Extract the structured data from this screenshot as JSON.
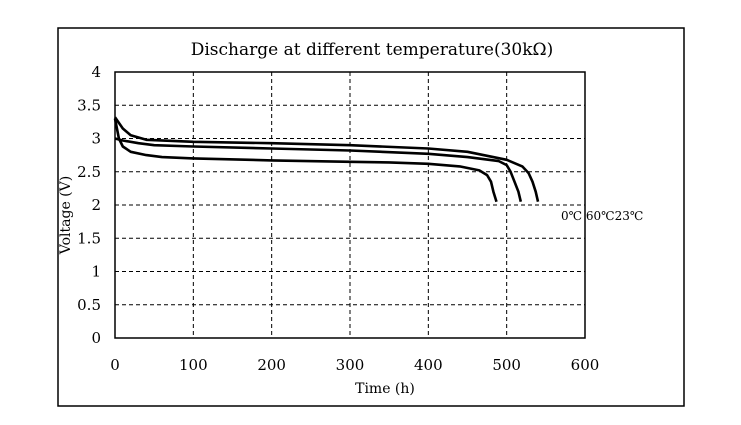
{
  "chart_data": {
    "type": "line",
    "title": "Discharge at different temperature(30kΩ)",
    "xlabel": "Time (h)",
    "ylabel": "Voltage (V)",
    "xlim": [
      0,
      600
    ],
    "ylim": [
      0,
      4
    ],
    "xticks": [
      "0",
      "100",
      "200",
      "300",
      "400",
      "500",
      "600"
    ],
    "yticks": [
      "0",
      "0.5",
      "1",
      "1.5",
      "2",
      "2.5",
      "3",
      "3.5",
      "4"
    ],
    "grid": true,
    "series_labels_text": "0℃ 60℃23℃",
    "series": [
      {
        "name": "0℃",
        "x": [
          0,
          5,
          10,
          20,
          40,
          60,
          100,
          200,
          300,
          350,
          400,
          440,
          465,
          475,
          480,
          483,
          487
        ],
        "y": [
          3.3,
          3.0,
          2.88,
          2.8,
          2.75,
          2.72,
          2.7,
          2.67,
          2.65,
          2.64,
          2.62,
          2.58,
          2.52,
          2.45,
          2.35,
          2.2,
          2.05
        ]
      },
      {
        "name": "60℃",
        "x": [
          0,
          10,
          30,
          50,
          100,
          200,
          300,
          400,
          450,
          490,
          500,
          505,
          510,
          515,
          518
        ],
        "y": [
          3.0,
          2.97,
          2.93,
          2.9,
          2.88,
          2.85,
          2.82,
          2.77,
          2.72,
          2.66,
          2.6,
          2.5,
          2.35,
          2.2,
          2.05
        ]
      },
      {
        "name": "23℃",
        "x": [
          0,
          10,
          20,
          40,
          100,
          200,
          300,
          400,
          450,
          500,
          520,
          528,
          533,
          537,
          540
        ],
        "y": [
          3.32,
          3.15,
          3.05,
          2.98,
          2.95,
          2.93,
          2.9,
          2.85,
          2.8,
          2.68,
          2.58,
          2.48,
          2.35,
          2.2,
          2.05
        ]
      }
    ]
  }
}
